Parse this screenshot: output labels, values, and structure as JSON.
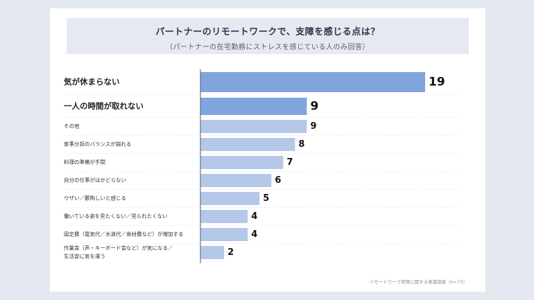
{
  "header": {
    "title": "パートナーのリモートワークで、支障を感じる点は？",
    "subtitle": "（パートナーの在宅勤務にストレスを感じている人のみ回答）"
  },
  "source": "リモートワーク実情に関する意識調査（n=73）",
  "colors": {
    "highlight": "#80a4de",
    "normal": "#b5c8e8",
    "axis": "#555555",
    "grid": "#dddddd"
  },
  "chart_data": {
    "type": "bar",
    "orientation": "horizontal",
    "title": "パートナーのリモートワークで、支障を感じる点は？",
    "categories": [
      "気が休まらない",
      "一人の時間が取れない",
      "その他",
      "家事分担のバランスが崩れる",
      "料理の準備が手間",
      "自分の仕事がはかどらない",
      "ウザい／鬱陶しいと感じる",
      "働いている姿を見たくない／見られたくない",
      "固定費（電気代／水道代／食材費など）が増加する",
      "作業音（声・キーボード音など）が気になる／生活音に気を遣う"
    ],
    "values": [
      19,
      9,
      9,
      8,
      7,
      6,
      5,
      4,
      4,
      2
    ],
    "highlighted": [
      true,
      true,
      false,
      false,
      false,
      false,
      false,
      false,
      false,
      false
    ],
    "xlim": [
      0,
      19
    ]
  }
}
